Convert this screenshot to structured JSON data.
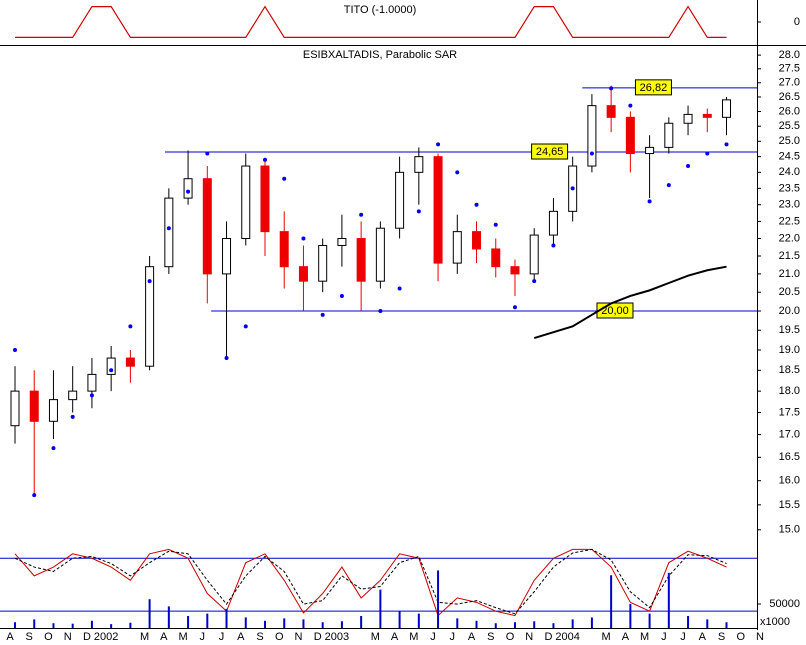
{
  "chart_data": [
    {
      "type": "step",
      "title": "TITO (-1.0000)",
      "color": "#cc0000",
      "x": [
        0,
        1,
        2,
        3,
        4,
        5,
        6,
        7,
        8,
        9,
        10,
        11,
        12,
        13,
        14,
        15,
        16,
        17,
        18,
        19,
        20,
        21,
        22,
        23,
        24,
        25,
        26,
        27,
        28,
        29,
        30,
        31,
        32,
        33,
        34,
        35,
        36,
        37
      ],
      "values": [
        -1,
        -1,
        -1,
        -1,
        1,
        1,
        -1,
        -1,
        -1,
        -1,
        -1,
        -1,
        -1,
        1,
        -1,
        -1,
        -1,
        -1,
        -1,
        -1,
        -1,
        -1,
        -1,
        -1,
        -1,
        -1,
        -1,
        1,
        1,
        -1,
        -1,
        -1,
        -1,
        -1,
        -1,
        1,
        -1,
        -1
      ],
      "ylim": [
        -1.3,
        1.3
      ],
      "yticks": [
        0
      ]
    },
    {
      "type": "candlestick",
      "title": "ESIBXALTADIS, Parabolic SAR",
      "log_scale": true,
      "categories": [
        "A",
        "S",
        "O",
        "N",
        "D",
        "2002",
        null,
        "M",
        "A",
        "M",
        "J",
        "J",
        "A",
        "S",
        "O",
        "N",
        "D",
        "2003",
        null,
        "M",
        "A",
        "M",
        "J",
        "J",
        "A",
        "S",
        "O",
        "N",
        "D",
        "2004",
        null,
        "M",
        "A",
        "M",
        "J",
        "J",
        "A",
        "S",
        "O",
        "N"
      ],
      "x": [
        0,
        1,
        2,
        3,
        4,
        5,
        6,
        7,
        8,
        9,
        10,
        11,
        12,
        13,
        14,
        15,
        16,
        17,
        18,
        19,
        20,
        21,
        22,
        23,
        24,
        25,
        26,
        27,
        28,
        29,
        30,
        31,
        32,
        33,
        34,
        35,
        36,
        37
      ],
      "open": [
        17.2,
        18.0,
        17.3,
        17.8,
        18.0,
        18.4,
        18.8,
        18.6,
        21.2,
        23.2,
        23.8,
        21.0,
        22.0,
        24.2,
        22.2,
        21.2,
        20.8,
        21.8,
        22.0,
        20.8,
        22.3,
        24.0,
        24.5,
        21.3,
        22.2,
        21.7,
        21.2,
        21.0,
        22.1,
        22.8,
        24.2,
        26.2,
        25.8,
        24.6,
        24.8,
        25.6,
        25.9,
        25.8
      ],
      "high": [
        18.6,
        18.5,
        18.5,
        18.6,
        18.8,
        19.1,
        19.0,
        21.5,
        23.5,
        24.7,
        24.2,
        22.5,
        24.6,
        24.4,
        22.8,
        21.8,
        22.0,
        22.7,
        22.5,
        22.5,
        24.5,
        24.8,
        24.6,
        22.7,
        22.5,
        22.0,
        21.4,
        22.3,
        23.2,
        24.5,
        26.6,
        26.9,
        26.0,
        25.2,
        25.8,
        26.2,
        26.1,
        26.5
      ],
      "low": [
        16.8,
        15.7,
        16.9,
        17.5,
        17.6,
        18.0,
        18.2,
        18.5,
        21.0,
        23.0,
        20.2,
        18.8,
        21.8,
        21.5,
        20.6,
        20.0,
        20.5,
        21.2,
        20.0,
        20.6,
        22.0,
        23.0,
        20.8,
        21.0,
        21.3,
        20.9,
        20.4,
        20.8,
        21.8,
        22.5,
        24.0,
        25.3,
        24.0,
        23.2,
        24.6,
        25.2,
        25.3,
        25.2
      ],
      "close": [
        18.0,
        17.3,
        17.8,
        18.0,
        18.4,
        18.8,
        18.6,
        21.2,
        23.2,
        23.8,
        21.0,
        22.0,
        24.2,
        22.2,
        21.2,
        20.8,
        21.8,
        22.0,
        20.8,
        22.3,
        24.0,
        24.5,
        21.3,
        22.2,
        21.7,
        21.2,
        21.0,
        22.1,
        22.8,
        24.2,
        26.2,
        25.8,
        24.6,
        24.8,
        25.6,
        25.9,
        25.8,
        26.4
      ],
      "up_color": "#ffffff",
      "down_color": "#ee0000",
      "sar": {
        "color": "#0000ee",
        "values": [
          19.0,
          15.7,
          16.7,
          17.4,
          17.9,
          18.5,
          19.6,
          20.8,
          22.3,
          23.4,
          24.6,
          18.8,
          19.6,
          24.4,
          23.8,
          22.0,
          19.9,
          20.4,
          22.7,
          20.0,
          20.6,
          22.8,
          24.9,
          24.0,
          23.0,
          22.4,
          20.1,
          20.8,
          21.8,
          23.5,
          24.6,
          26.8,
          26.2,
          23.1,
          23.6,
          24.2,
          24.6,
          24.9
        ]
      },
      "average": {
        "color": "#000000",
        "x": [
          27,
          28,
          29,
          30,
          31,
          32,
          33,
          34,
          35,
          36,
          37
        ],
        "values": [
          19.3,
          19.45,
          19.6,
          19.9,
          20.2,
          20.4,
          20.55,
          20.75,
          20.95,
          21.1,
          21.2
        ]
      },
      "levels": [
        {
          "value": 24.65,
          "label": "24,65",
          "from": 7.8
        },
        {
          "value": 20.0,
          "label": "20,00",
          "from": 10.2
        },
        {
          "value": 26.82,
          "label": "26,82",
          "from": 29.5
        }
      ],
      "level_color": "#0000cc",
      "label_color": "#ffff00",
      "ylim": [
        14.8,
        28.3
      ],
      "yticks": [
        {
          "value": 15,
          "label": "15.0"
        },
        {
          "value": 15.5,
          "label": "15.5"
        },
        {
          "value": 16,
          "label": "16.0"
        },
        {
          "value": 16.5,
          "label": "16.5"
        },
        {
          "value": 17,
          "label": "17.0"
        },
        {
          "value": 17.5,
          "label": "17.5"
        },
        {
          "value": 18,
          "label": "18.0"
        },
        {
          "value": 18.5,
          "label": "18.5"
        },
        {
          "value": 19,
          "label": "19.0"
        },
        {
          "value": 19.5,
          "label": "19.5"
        },
        {
          "value": 20,
          "label": "20.0"
        },
        {
          "value": 20.5,
          "label": "20.5"
        },
        {
          "value": 21,
          "label": "21.0"
        },
        {
          "value": 21.5,
          "label": "21.5"
        },
        {
          "value": 22,
          "label": "22.0"
        },
        {
          "value": 22.5,
          "label": "22.5"
        },
        {
          "value": 23,
          "label": "23.0"
        },
        {
          "value": 23.5,
          "label": "23.5"
        },
        {
          "value": 24,
          "label": "24.0"
        },
        {
          "value": 24.5,
          "label": "24.5"
        },
        {
          "value": 25,
          "label": "25.0"
        },
        {
          "value": 25.5,
          "label": "25.5"
        },
        {
          "value": 26,
          "label": "26.0"
        },
        {
          "value": 26.5,
          "label": "26.5"
        },
        {
          "value": 27,
          "label": "27.0"
        },
        {
          "value": 27.5,
          "label": "27.5"
        },
        {
          "value": 28,
          "label": "28.0"
        }
      ]
    },
    {
      "type": "line",
      "x": [
        0,
        1,
        2,
        3,
        4,
        5,
        6,
        7,
        8,
        9,
        10,
        11,
        12,
        13,
        14,
        15,
        16,
        17,
        18,
        19,
        20,
        21,
        22,
        23,
        24,
        25,
        26,
        27,
        28,
        29,
        30,
        31,
        32,
        33,
        34,
        35,
        36,
        37
      ],
      "series": [
        {
          "name": null,
          "color": "#cc0000",
          "dashed": false,
          "values": [
            85,
            60,
            70,
            85,
            80,
            70,
            55,
            85,
            90,
            80,
            40,
            20,
            75,
            85,
            55,
            18,
            40,
            70,
            35,
            55,
            85,
            80,
            15,
            35,
            30,
            20,
            15,
            55,
            80,
            90,
            90,
            70,
            30,
            20,
            75,
            88,
            80,
            70
          ]
        },
        {
          "name": null,
          "color": "#000000",
          "dashed": true,
          "values": [
            80,
            70,
            65,
            80,
            82,
            74,
            60,
            75,
            88,
            85,
            55,
            28,
            60,
            82,
            65,
            28,
            32,
            60,
            45,
            48,
            75,
            82,
            30,
            28,
            32,
            24,
            17,
            42,
            70,
            86,
            90,
            78,
            42,
            24,
            60,
            84,
            83,
            74
          ]
        }
      ],
      "levels": [
        80,
        20
      ],
      "level_color": "#0000cc",
      "ylim": [
        10,
        95
      ]
    },
    {
      "type": "bar",
      "color": "#0000cc",
      "units": "x1000",
      "x": [
        0,
        1,
        2,
        3,
        4,
        5,
        6,
        7,
        8,
        9,
        10,
        11,
        12,
        13,
        14,
        15,
        16,
        17,
        18,
        19,
        20,
        21,
        22,
        23,
        24,
        25,
        26,
        27,
        28,
        29,
        30,
        31,
        32,
        33,
        34,
        35,
        36,
        37
      ],
      "values": [
        12000,
        18000,
        10000,
        9000,
        15000,
        8000,
        11000,
        60000,
        45000,
        25000,
        30000,
        40000,
        22000,
        15000,
        20000,
        18000,
        12000,
        14000,
        25000,
        80000,
        35000,
        30000,
        120000,
        20000,
        15000,
        10000,
        12000,
        14000,
        10000,
        18000,
        22000,
        110000,
        50000,
        30000,
        115000,
        25000,
        18000,
        12000
      ],
      "ylim": [
        0,
        173000
      ],
      "yticks": [
        50000
      ]
    }
  ]
}
